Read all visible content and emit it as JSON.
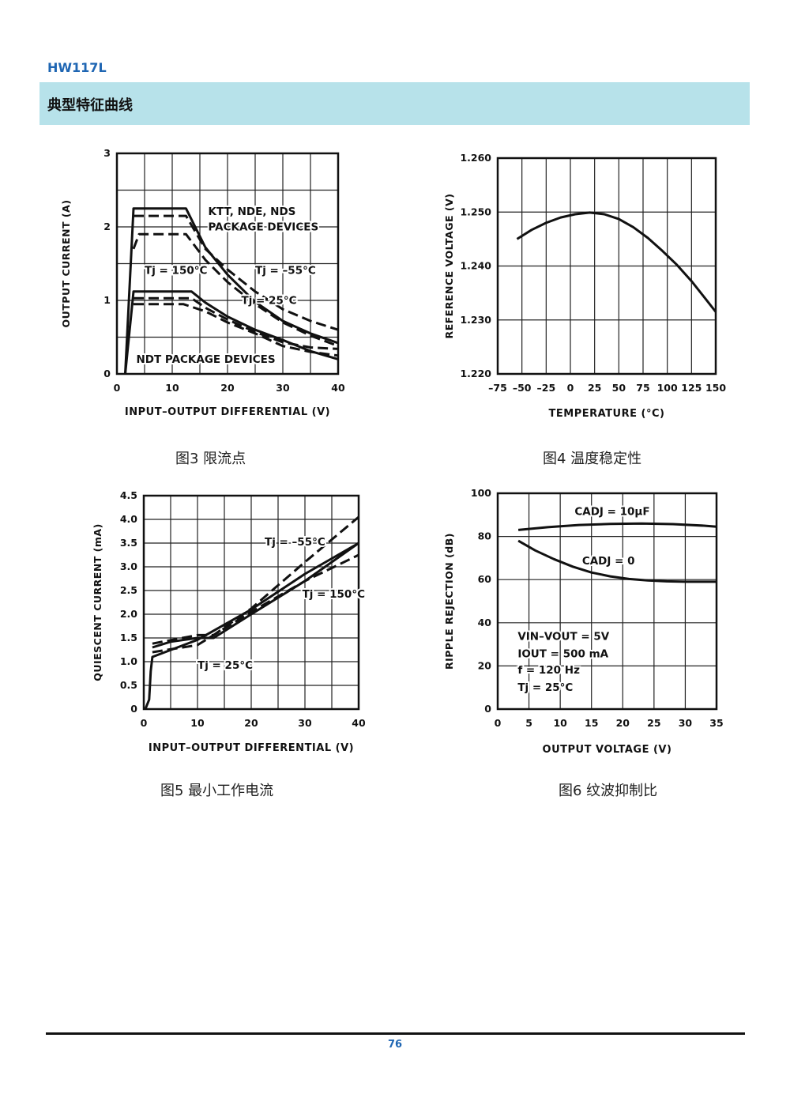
{
  "header": {
    "product": "HW117L",
    "section": "典型特征曲线"
  },
  "footer": {
    "page_number": "76"
  },
  "captions": {
    "fig3": "图3  限流点",
    "fig4": "图4  温度稳定性",
    "fig5": "图5  最小工作电流",
    "fig6": "图6  纹波抑制比"
  },
  "chart_data": [
    {
      "id": "fig3",
      "type": "line",
      "xlabel": "INPUT–OUTPUT DIFFERENTIAL (V)",
      "ylabel": "OUTPUT CURRENT (A)",
      "xlim": [
        0,
        40
      ],
      "ylim": [
        0,
        3
      ],
      "xticks": [
        0,
        10,
        20,
        30,
        40
      ],
      "yticks": [
        0,
        1,
        2,
        3
      ],
      "grid": true,
      "series": [
        {
          "style": "solid",
          "x": [
            1.5,
            3,
            12.5,
            16,
            20,
            25,
            30,
            35,
            40
          ],
          "y": [
            0,
            2.25,
            2.25,
            1.72,
            1.35,
            0.98,
            0.72,
            0.55,
            0.42
          ]
        },
        {
          "style": "dashed",
          "x": [
            3,
            12.5,
            16,
            20,
            25,
            30,
            35,
            40
          ],
          "y": [
            2.15,
            2.15,
            1.7,
            1.42,
            1.12,
            0.88,
            0.72,
            0.6
          ]
        },
        {
          "style": "dashed",
          "x": [
            3,
            4,
            8.5,
            12.5,
            16,
            20,
            25,
            30,
            35,
            40
          ],
          "y": [
            1.7,
            1.9,
            1.9,
            1.9,
            1.55,
            1.25,
            0.95,
            0.7,
            0.52,
            0.38
          ]
        },
        {
          "style": "solid",
          "x": [
            1.5,
            3,
            13.5,
            16,
            20,
            25,
            30,
            35,
            40
          ],
          "y": [
            0,
            1.12,
            1.12,
            0.97,
            0.78,
            0.6,
            0.46,
            0.31,
            0.2
          ]
        },
        {
          "style": "dashed",
          "x": [
            3,
            13.5,
            16,
            20,
            25,
            30,
            35,
            40
          ],
          "y": [
            1.03,
            1.03,
            0.9,
            0.74,
            0.57,
            0.43,
            0.36,
            0.34
          ]
        },
        {
          "style": "dashed",
          "x": [
            3,
            12,
            16,
            20,
            25,
            30,
            35,
            40
          ],
          "y": [
            0.95,
            0.95,
            0.85,
            0.7,
            0.55,
            0.38,
            0.3,
            0.25
          ]
        }
      ],
      "annotations": [
        {
          "text": "KTT, NDE, NDS",
          "x": 16.5,
          "y": 2.16
        },
        {
          "text": "PACKAGE DEVICES",
          "x": 16.5,
          "y": 1.95
        },
        {
          "text": "Tj = 150°C",
          "x": 5,
          "y": 1.36
        },
        {
          "text": "Tj = –55°C",
          "x": 25,
          "y": 1.36
        },
        {
          "text": "Tj = 25°C",
          "x": 22.5,
          "y": 0.95
        },
        {
          "text": "NDT PACKAGE DEVICES",
          "x": 3.5,
          "y": 0.15
        }
      ]
    },
    {
      "id": "fig4",
      "type": "line",
      "xlabel": "TEMPERATURE (°C)",
      "ylabel": "REFERENCE VOLTAGE (V)",
      "xlim": [
        -75,
        150
      ],
      "ylim": [
        1.22,
        1.26
      ],
      "xticks": [
        -75,
        -50,
        -25,
        0,
        25,
        50,
        75,
        100,
        125,
        150
      ],
      "yticks": [
        1.22,
        1.23,
        1.24,
        1.25,
        1.26
      ],
      "xticklabels": [
        "–75",
        "–50",
        "–25",
        "0",
        "25",
        "50",
        "75",
        "100",
        "125",
        "150"
      ],
      "yticklabels": [
        "1.220",
        "1.230",
        "1.240",
        "1.250",
        "1.260"
      ],
      "grid": true,
      "series": [
        {
          "style": "solid",
          "x": [
            -55,
            -40,
            -25,
            -10,
            5,
            20,
            35,
            50,
            65,
            80,
            95,
            110,
            125,
            140,
            150
          ],
          "y": [
            1.245,
            1.2467,
            1.248,
            1.249,
            1.2496,
            1.2499,
            1.2496,
            1.2487,
            1.2472,
            1.2452,
            1.2428,
            1.2402,
            1.2372,
            1.2338,
            1.2315
          ]
        }
      ]
    },
    {
      "id": "fig5",
      "type": "line",
      "xlabel": "INPUT–OUTPUT DIFFERENTIAL (V)",
      "ylabel": "QUIESCENT CURRENT (mA)",
      "xlim": [
        0,
        40
      ],
      "ylim": [
        0,
        4.5
      ],
      "xticks": [
        0,
        10,
        20,
        30,
        40
      ],
      "yticks": [
        0,
        0.5,
        1.0,
        1.5,
        2.0,
        2.5,
        3.0,
        3.5,
        4.0,
        4.5
      ],
      "yticklabels": [
        "0",
        "0.5",
        "1.0",
        "1.5",
        "2.0",
        "2.5",
        "3.0",
        "3.5",
        "4.0",
        "4.5"
      ],
      "grid": true,
      "series": [
        {
          "style": "solid",
          "x": [
            0.3,
            1,
            1.3,
            1.6,
            10,
            20,
            30,
            40
          ],
          "y": [
            0,
            0.2,
            0.8,
            1.1,
            1.46,
            2.1,
            2.85,
            3.5
          ]
        },
        {
          "style": "dashed",
          "x": [
            1.6,
            10,
            13,
            20,
            30,
            40
          ],
          "y": [
            1.38,
            1.56,
            1.56,
            2.12,
            3.1,
            4.05
          ]
        },
        {
          "style": "dashed",
          "x": [
            1.6,
            10,
            20,
            30,
            40
          ],
          "y": [
            1.2,
            1.35,
            2.05,
            2.7,
            3.25
          ]
        },
        {
          "style": "solid",
          "x": [
            1.6,
            5,
            10,
            13,
            20,
            30,
            40
          ],
          "y": [
            1.3,
            1.42,
            1.5,
            1.5,
            2.0,
            2.7,
            3.5
          ]
        }
      ],
      "annotations": [
        {
          "text": "Tj = –55°C",
          "x": 22.5,
          "y": 3.45
        },
        {
          "text": "Tj = 150°C",
          "x": 29.5,
          "y": 2.35
        },
        {
          "text": "Tj = 25°C",
          "x": 10,
          "y": 0.85
        }
      ]
    },
    {
      "id": "fig6",
      "type": "line",
      "xlabel": "OUTPUT VOLTAGE (V)",
      "ylabel": "RIPPLE REJECTION (dB)",
      "xlim": [
        0,
        35
      ],
      "ylim": [
        0,
        100
      ],
      "xticks": [
        0,
        5,
        10,
        15,
        20,
        25,
        30,
        35
      ],
      "yticks": [
        0,
        20,
        40,
        60,
        80,
        100
      ],
      "grid": true,
      "series": [
        {
          "style": "solid",
          "x": [
            3.3,
            8,
            13,
            18,
            23,
            28,
            33,
            35
          ],
          "y": [
            83,
            84.3,
            85.3,
            85.8,
            86,
            85.7,
            85,
            84.5
          ]
        },
        {
          "style": "solid",
          "x": [
            3.3,
            6,
            9,
            12,
            15,
            18,
            21,
            24,
            27,
            30,
            33,
            35
          ],
          "y": [
            78,
            73.5,
            69.5,
            66,
            63.3,
            61.5,
            60.3,
            59.6,
            59.2,
            59.0,
            59.0,
            59.0
          ]
        }
      ],
      "annotations": [
        {
          "text": "CADJ = 10µF",
          "x": 12.3,
          "y": 90
        },
        {
          "text": "CADJ = 0",
          "x": 13.5,
          "y": 67
        },
        {
          "text": "VIN–VOUT = 5V",
          "x": 3.2,
          "y": 32
        },
        {
          "text": "IOUT = 500 mA",
          "x": 3.2,
          "y": 24
        },
        {
          "text": "f = 120 Hz",
          "x": 3.2,
          "y": 16.5
        },
        {
          "text": "Tj = 25°C",
          "x": 3.2,
          "y": 8.5
        }
      ]
    }
  ]
}
